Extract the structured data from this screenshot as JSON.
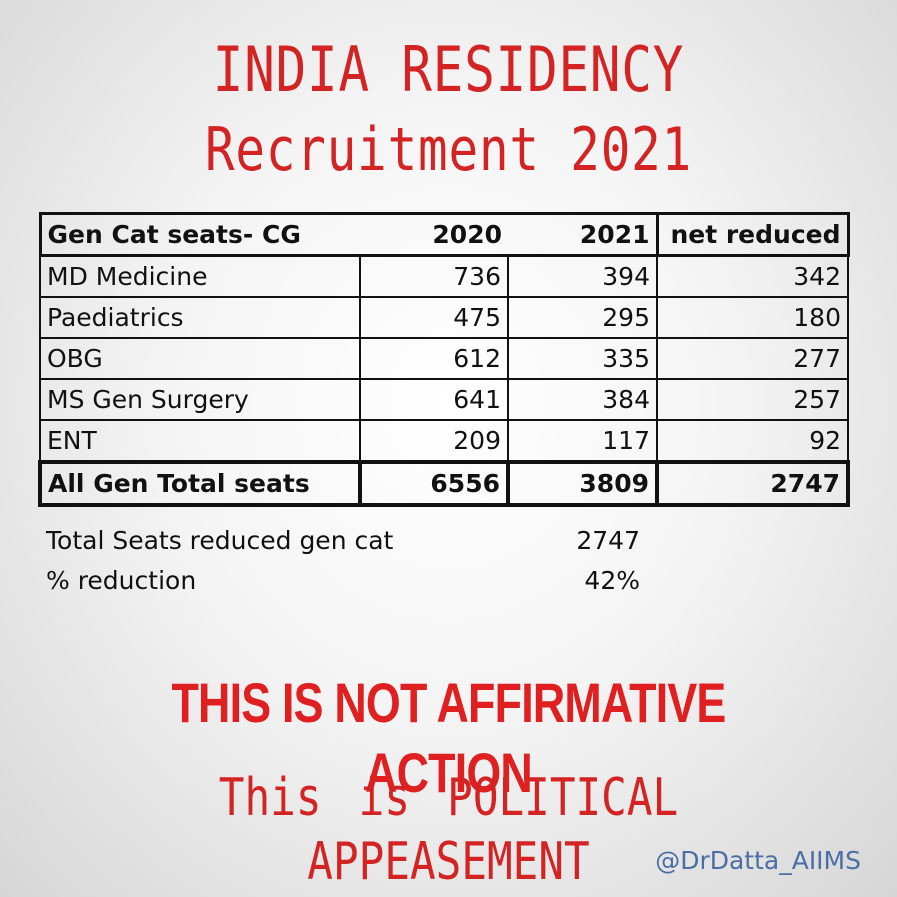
{
  "title_line1": "INDIA RESIDENCY",
  "title_line2": "Recruitment  2021",
  "chart_data": {
    "type": "table",
    "columns": [
      "Gen Cat seats- CG",
      "2020",
      "2021",
      "net reduced"
    ],
    "rows": [
      [
        "MD Medicine",
        736,
        394,
        342
      ],
      [
        "Paediatrics",
        475,
        295,
        180
      ],
      [
        "OBG",
        612,
        335,
        277
      ],
      [
        "MS Gen Surgery",
        641,
        384,
        257
      ],
      [
        "ENT",
        209,
        117,
        92
      ]
    ],
    "total_row": [
      "All Gen Total seats",
      6556,
      3809,
      2747
    ],
    "summary": [
      {
        "label": "Total Seats reduced gen cat",
        "value": "2747"
      },
      {
        "label": "% reduction",
        "value": "42%"
      }
    ]
  },
  "banner": "THIS IS NOT AFFIRMATIVE ACTION",
  "subline": "This is POLITICAL APPEASEMENT",
  "handle": "@DrDatta_AIIMS",
  "colors": {
    "accent_red": "#d42323",
    "handle_blue": "#4a6fa5"
  }
}
